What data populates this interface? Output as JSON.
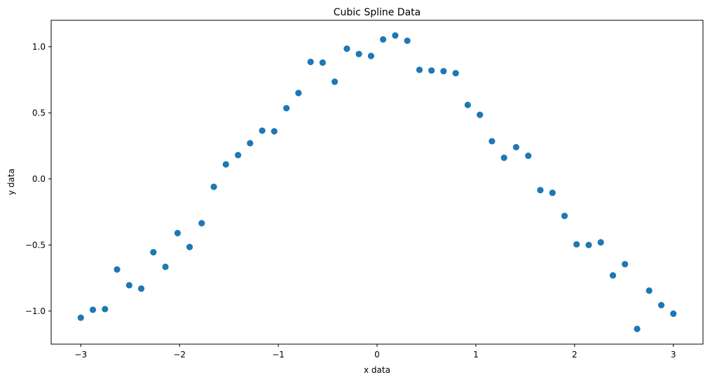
{
  "chart_data": {
    "type": "scatter",
    "title": "Cubic Spline Data",
    "xlabel": "x data",
    "ylabel": "y data",
    "xlim": [
      -3.3,
      3.3
    ],
    "ylim": [
      -1.25,
      1.2
    ],
    "xticks": [
      -3,
      -2,
      -1,
      0,
      1,
      2,
      3
    ],
    "xtick_labels": [
      "−3",
      "−2",
      "−1",
      "0",
      "1",
      "2",
      "3"
    ],
    "yticks": [
      -1.0,
      -0.5,
      0.0,
      0.5,
      1.0
    ],
    "ytick_labels": [
      "−1.0",
      "−0.5",
      "0.0",
      "0.5",
      "1.0"
    ],
    "grid": false,
    "marker_color": "#1f77b4",
    "series": [
      {
        "x": [
          -3.0,
          -2.878,
          -2.755,
          -2.633,
          -2.51,
          -2.388,
          -2.265,
          -2.143,
          -2.02,
          -1.898,
          -1.776,
          -1.653,
          -1.531,
          -1.408,
          -1.286,
          -1.163,
          -1.041,
          -0.918,
          -0.796,
          -0.673,
          -0.551,
          -0.429,
          -0.306,
          -0.184,
          -0.061,
          0.061,
          0.184,
          0.306,
          0.429,
          0.551,
          0.673,
          0.796,
          0.918,
          1.041,
          1.163,
          1.286,
          1.408,
          1.531,
          1.653,
          1.776,
          1.898,
          2.02,
          2.143,
          2.265,
          2.388,
          2.51,
          2.633,
          2.755,
          2.878,
          3.0
        ],
        "y": [
          -1.05,
          -0.99,
          -0.985,
          -0.685,
          -0.805,
          -0.83,
          -0.555,
          -0.665,
          -0.41,
          -0.515,
          -0.335,
          -0.06,
          0.11,
          0.18,
          0.27,
          0.365,
          0.36,
          0.535,
          0.65,
          0.885,
          0.88,
          0.735,
          0.985,
          0.945,
          0.93,
          1.055,
          1.085,
          1.045,
          0.825,
          0.82,
          0.815,
          0.8,
          0.56,
          0.485,
          0.285,
          0.16,
          0.24,
          0.175,
          -0.085,
          -0.105,
          -0.28,
          -0.495,
          -0.5,
          -0.48,
          -0.73,
          -0.645,
          -1.135,
          -0.845,
          -0.955,
          -1.02
        ]
      }
    ]
  }
}
